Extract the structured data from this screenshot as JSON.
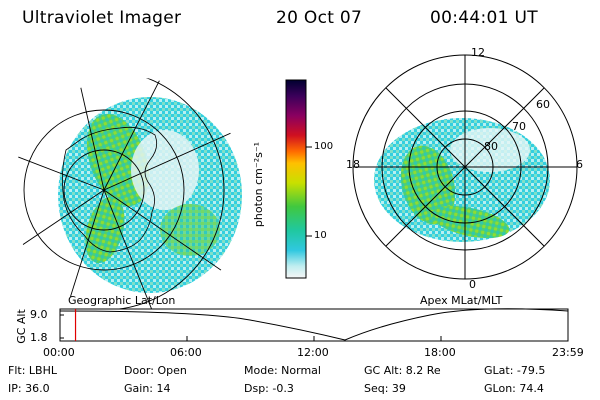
{
  "header": {
    "instrument": "Ultraviolet Imager",
    "date": "20 Oct 07",
    "time": "00:44:01 UT"
  },
  "colorbar": {
    "label": "photon cm⁻²s⁻¹",
    "ticks": [
      "100",
      "10"
    ],
    "colors": [
      "#000040",
      "#3a005a",
      "#7a0070",
      "#c00040",
      "#e01010",
      "#ff7a00",
      "#ffc000",
      "#d8e000",
      "#70d030",
      "#20c070",
      "#20c8d0",
      "#bfeef0",
      "#f4f4f4"
    ]
  },
  "left_map": {
    "caption": "Geographic Lat/Lon"
  },
  "right_map": {
    "caption": "Apex MLat/MLT",
    "mlt_labels": {
      "top": "12",
      "left": "18",
      "right": "6",
      "bottom": "0"
    },
    "lat_labels": [
      "60",
      "70",
      "80"
    ]
  },
  "timeline": {
    "ylabel": "GC Alt",
    "yticks": [
      "9.0",
      "1.8"
    ],
    "xticks": [
      "00:00",
      "06:00",
      "12:00",
      "18:00",
      "23:59"
    ],
    "marker_time": "00:44",
    "marker_color": "#e00000"
  },
  "info": {
    "row1": {
      "filter": "Flt: LBHL",
      "door": "Door: Open",
      "mode": "Mode: Normal",
      "gc_alt": "GC Alt: 8.2 Re",
      "glat": "GLat: -79.5"
    },
    "row2": {
      "ip": "IP: 36.0",
      "gain": "Gain: 14",
      "dsp": "Dsp:   -0.3",
      "seq": "Seq: 39",
      "glon": "GLon:  74.4"
    }
  }
}
